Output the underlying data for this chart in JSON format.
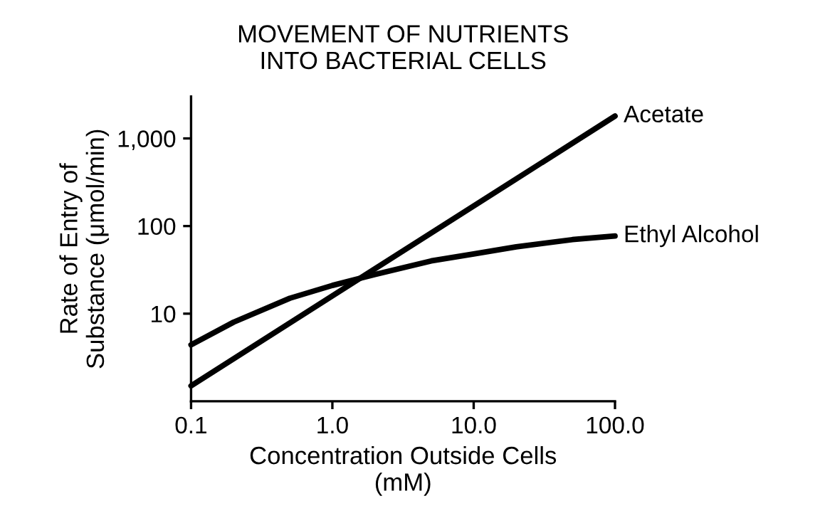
{
  "chart_data": {
    "type": "line",
    "title": "MOVEMENT OF NUTRIENTS\nINTO BACTERIAL CELLS",
    "xlabel": "Concentration Outside Cells\n(mM)",
    "ylabel": "Rate of Entry of\nSubstance (μmol/min)",
    "log": "xy",
    "xlim": [
      0.1,
      100
    ],
    "ylim": [
      1,
      3000
    ],
    "xticks": [
      0.1,
      {
        "value": 1,
        "label": "1.0"
      },
      {
        "value": 10,
        "label": "10.0"
      },
      {
        "value": 100,
        "label": "100.0"
      }
    ],
    "yticks": [
      10,
      100,
      {
        "value": 1000,
        "label": "1,000"
      }
    ],
    "grid": false,
    "marker": "none",
    "line_style": "solid",
    "series": [
      {
        "name": "Acetate",
        "color": "#000000",
        "x": [
          0.1,
          100
        ],
        "values": [
          1.5,
          1800
        ]
      },
      {
        "name": "Ethyl Alcohol",
        "color": "#000000",
        "x": [
          0.1,
          0.2,
          0.5,
          1,
          2,
          5,
          10,
          20,
          50,
          100
        ],
        "values": [
          4.4,
          8,
          15,
          21,
          28,
          40,
          48,
          58,
          70,
          77
        ]
      }
    ]
  }
}
